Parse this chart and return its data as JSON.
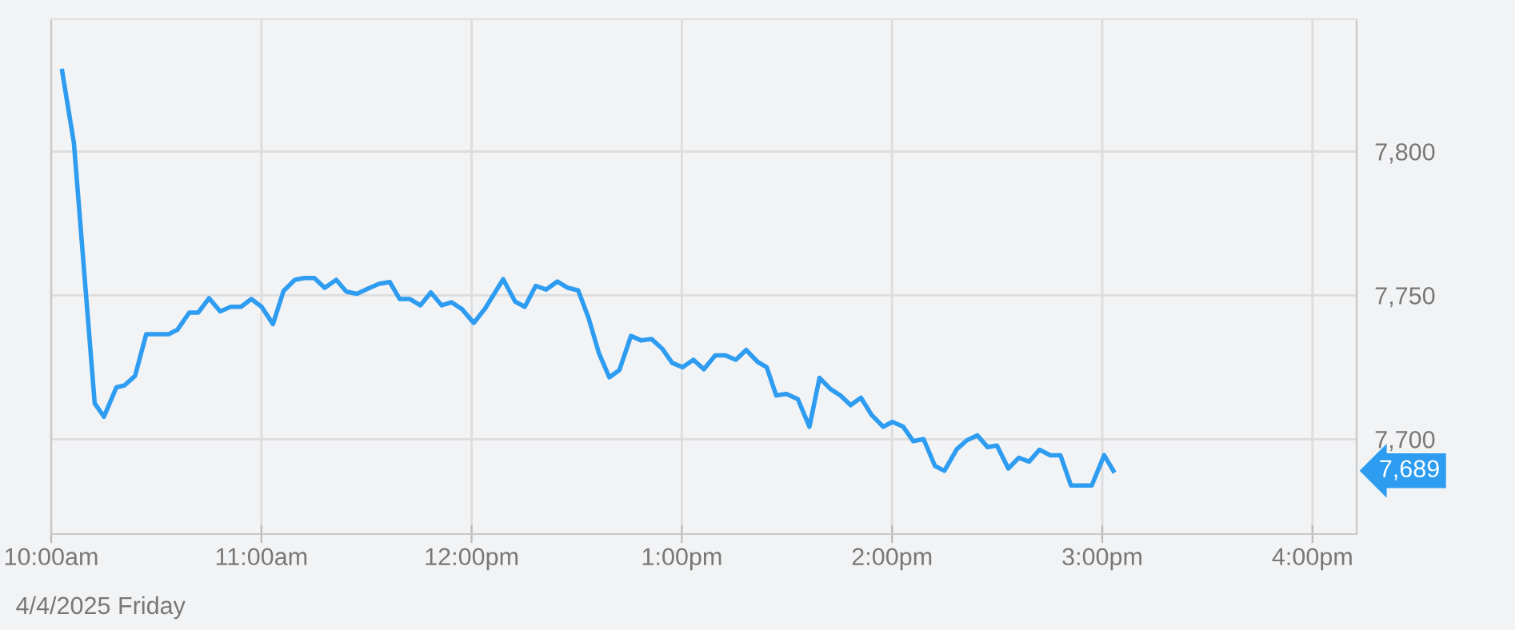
{
  "chart_data": {
    "type": "line",
    "x": [
      10.052,
      10.108,
      10.207,
      10.251,
      10.31,
      10.349,
      10.399,
      10.452,
      10.559,
      10.6,
      10.657,
      10.699,
      10.751,
      10.804,
      10.854,
      10.903,
      10.952,
      11.001,
      11.055,
      11.105,
      11.159,
      11.203,
      11.252,
      11.301,
      11.356,
      11.404,
      11.454,
      11.503,
      11.559,
      11.611,
      11.658,
      11.707,
      11.756,
      11.806,
      11.858,
      11.904,
      11.954,
      12.01,
      12.064,
      12.15,
      12.207,
      12.253,
      12.305,
      12.354,
      12.408,
      12.458,
      12.507,
      12.556,
      12.605,
      12.655,
      12.703,
      12.758,
      12.807,
      12.856,
      12.906,
      12.954,
      13.004,
      13.055,
      13.105,
      13.159,
      13.208,
      13.257,
      13.306,
      13.36,
      13.404,
      13.449,
      13.498,
      13.552,
      13.607,
      13.655,
      13.707,
      13.754,
      13.803,
      13.852,
      13.904,
      13.958,
      14.002,
      14.052,
      14.101,
      14.15,
      14.204,
      14.249,
      14.308,
      14.356,
      14.406,
      14.455,
      14.499,
      14.553,
      14.603,
      14.652,
      14.701,
      14.753,
      14.801,
      14.851,
      14.9,
      14.95,
      15.009,
      15.053
    ],
    "series": [
      {
        "color": "#2e9cf0",
        "values": [
          7828,
          7803,
          7712.4,
          7707.8,
          7718,
          7718.7,
          7722,
          7736.5,
          7736.5,
          7738,
          7744,
          7744,
          7749,
          7744.4,
          7746,
          7746,
          7748.7,
          7746,
          7740,
          7751.5,
          7755.4,
          7756,
          7756,
          7752.6,
          7755.4,
          7751.3,
          7750.5,
          7752.2,
          7754,
          7754.6,
          7748.7,
          7748.7,
          7746.5,
          7751,
          7746.5,
          7747.6,
          7745.2,
          7740.4,
          7745.4,
          7755.6,
          7747.8,
          7746,
          7753.3,
          7752,
          7754.8,
          7752.6,
          7751.7,
          7742.2,
          7730,
          7721.5,
          7724,
          7735.9,
          7734.3,
          7734.8,
          7731.5,
          7726.5,
          7725,
          7727.6,
          7724.3,
          7729.1,
          7729.1,
          7727.6,
          7731,
          7726.9,
          7725,
          7715.2,
          7715.7,
          7713.9,
          7704.3,
          7721.3,
          7717.4,
          7715.2,
          7711.8,
          7714.4,
          7708.3,
          7704.3,
          7706,
          7704.4,
          7699.3,
          7700,
          7690.7,
          7689,
          7696.5,
          7699.6,
          7701.3,
          7697.2,
          7697.8,
          7689.8,
          7693.5,
          7692.2,
          7696.3,
          7694.4,
          7694.4,
          7683.9,
          7683.9,
          7683.9,
          7694.4,
          7689
        ]
      }
    ],
    "xlim": [
      10,
      16.21
    ],
    "xticks": [
      {
        "value": 10,
        "label": "10:00am"
      },
      {
        "value": 11,
        "label": "11:00am"
      },
      {
        "value": 12,
        "label": "12:00pm"
      },
      {
        "value": 13,
        "label": "1:00pm"
      },
      {
        "value": 14,
        "label": "2:00pm"
      },
      {
        "value": 15,
        "label": "3:00pm"
      },
      {
        "value": 16,
        "label": "4:00pm"
      }
    ],
    "ylim": [
      7667,
      7846
    ],
    "yticks": [
      {
        "value": 7700,
        "label": "7,700"
      },
      {
        "value": 7750,
        "label": "7,750"
      },
      {
        "value": 7800,
        "label": "7,800"
      }
    ],
    "annotations": [
      "4/4/2025 Friday",
      "7,689"
    ],
    "grid": true,
    "legend": false,
    "marker": "none",
    "line_style": "solid"
  }
}
